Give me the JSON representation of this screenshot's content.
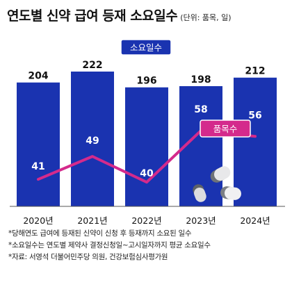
{
  "header": {
    "title": "연도별 신약 급여 등재 소요일수",
    "unit": "(단위: 품목, 일)"
  },
  "notes": [
    "*당해연도 급여에 등재된 신약이 신청 후 등재까지 소요된 일수",
    "*소요일수는 연도별 제약사 결정신청일~고시일자까지 평균 소요일수",
    "*자료: 서영석 더불어민주당 의원, 건강보험심사평가원"
  ],
  "colors": {
    "bar": "#1a33b0",
    "line": "#d42a8c",
    "baseline": "#555555"
  },
  "chart_data": {
    "type": "bar",
    "categories": [
      "2020년",
      "2021년",
      "2022년",
      "2023년",
      "2024년"
    ],
    "series": [
      {
        "name": "소요일수",
        "type": "bar",
        "values": [
          204,
          222,
          196,
          198,
          212
        ]
      },
      {
        "name": "품목수",
        "type": "line",
        "values": [
          41,
          49,
          40,
          58,
          56
        ]
      }
    ],
    "legend": [
      "소요일수",
      "품목수"
    ]
  }
}
